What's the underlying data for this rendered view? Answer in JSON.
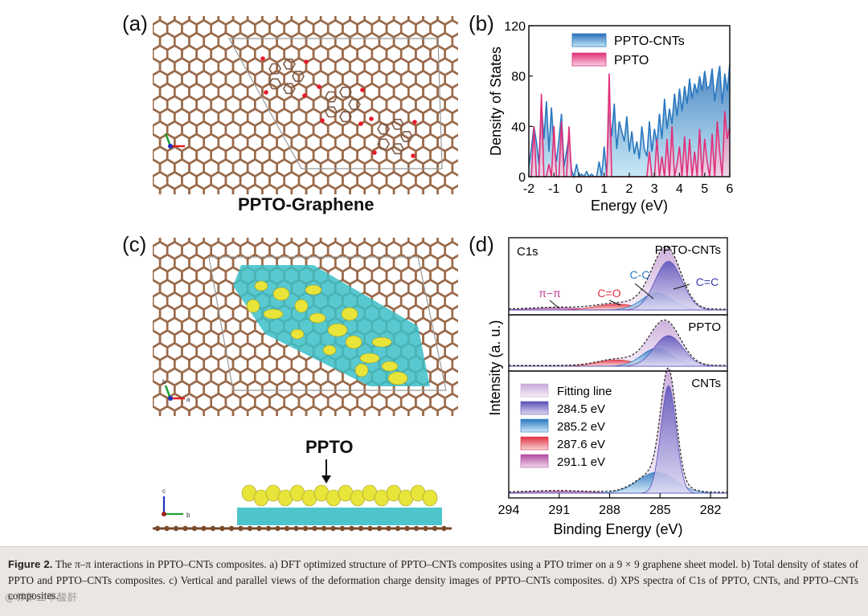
{
  "panels": {
    "a": {
      "label": "(a)",
      "title": "PPTO-Graphene"
    },
    "b": {
      "label": "(b)"
    },
    "c": {
      "label": "(c)",
      "side_title": "PPTO"
    },
    "d": {
      "label": "(d)"
    }
  },
  "colors": {
    "graphene": "#9a6a4a",
    "oxygen": "#e8192c",
    "charge_cyan": "#3bbfc8",
    "charge_yellow": "#e8e43a",
    "ppto_cnts": "#2a78c0",
    "ppto": "#e0307a"
  },
  "axis_glyphs": {
    "a": "a",
    "b": "b",
    "c": "c"
  },
  "chart_data": [
    {
      "id": "b",
      "type": "area",
      "title": "",
      "xlabel": "Energy (eV)",
      "ylabel": "Density of States",
      "xlim": [
        -2,
        6
      ],
      "ylim": [
        0,
        120
      ],
      "x_ticks": [
        "-2",
        "-1",
        "0",
        "1",
        "2",
        "3",
        "4",
        "5",
        "6"
      ],
      "y_ticks": [
        "0",
        "40",
        "80",
        "120"
      ],
      "legend": [
        "PPTO-CNTs",
        "PPTO"
      ],
      "series": [
        {
          "name": "PPTO-CNTs",
          "x": [
            -2,
            -1.9,
            -1.8,
            -1.7,
            -1.6,
            -1.5,
            -1.4,
            -1.3,
            -1.2,
            -1.1,
            -1.0,
            -0.9,
            -0.8,
            -0.7,
            -0.6,
            -0.5,
            -0.4,
            -0.3,
            -0.2,
            -0.1,
            0.0,
            0.1,
            0.2,
            0.3,
            0.4,
            0.5,
            0.6,
            0.7,
            0.8,
            0.9,
            1.0,
            1.1,
            1.2,
            1.3,
            1.4,
            1.5,
            1.6,
            1.7,
            1.8,
            1.9,
            2.0,
            2.1,
            2.2,
            2.3,
            2.4,
            2.5,
            2.6,
            2.7,
            2.8,
            2.9,
            3.0,
            3.1,
            3.2,
            3.3,
            3.4,
            3.5,
            3.6,
            3.7,
            3.8,
            3.9,
            4.0,
            4.1,
            4.2,
            4.3,
            4.4,
            4.5,
            4.6,
            4.7,
            4.8,
            4.9,
            5.0,
            5.1,
            5.2,
            5.3,
            5.4,
            5.5,
            5.6,
            5.7,
            5.8,
            5.9,
            6.0
          ],
          "values": [
            8,
            22,
            40,
            28,
            10,
            58,
            30,
            60,
            20,
            55,
            25,
            12,
            30,
            50,
            8,
            20,
            32,
            5,
            0,
            10,
            0,
            2,
            0,
            4,
            0,
            2,
            0,
            0,
            12,
            0,
            24,
            0,
            50,
            32,
            58,
            22,
            44,
            36,
            28,
            48,
            20,
            36,
            18,
            28,
            14,
            40,
            22,
            16,
            44,
            20,
            38,
            26,
            50,
            30,
            62,
            38,
            54,
            42,
            66,
            48,
            70,
            52,
            72,
            58,
            78,
            62,
            74,
            66,
            80,
            68,
            84,
            70,
            72,
            86,
            60,
            76,
            88,
            58,
            82,
            68,
            90
          ]
        },
        {
          "name": "PPTO",
          "x": [
            -2,
            -1.9,
            -1.8,
            -1.7,
            -1.6,
            -1.5,
            -1.4,
            -1.3,
            -1.2,
            -1.1,
            -1.0,
            -0.9,
            -0.8,
            -0.7,
            -0.6,
            -0.5,
            -0.4,
            -0.3,
            -0.2,
            -0.1,
            0.0,
            0.1,
            0.2,
            0.3,
            0.4,
            0.5,
            0.6,
            0.7,
            0.8,
            0.9,
            1.0,
            1.1,
            1.2,
            1.3,
            1.4,
            1.5,
            1.6,
            1.7,
            1.8,
            1.9,
            2.0,
            2.1,
            2.2,
            2.3,
            2.4,
            2.5,
            2.6,
            2.7,
            2.8,
            2.9,
            3.0,
            3.1,
            3.2,
            3.3,
            3.4,
            3.5,
            3.6,
            3.7,
            3.8,
            3.9,
            4.0,
            4.1,
            4.2,
            4.3,
            4.4,
            4.5,
            4.6,
            4.7,
            4.8,
            4.9,
            5.0,
            5.1,
            5.2,
            5.3,
            5.4,
            5.5,
            5.6,
            5.7,
            5.8,
            5.9,
            6.0
          ],
          "values": [
            0,
            0,
            40,
            0,
            0,
            66,
            0,
            0,
            10,
            0,
            40,
            0,
            0,
            44,
            0,
            0,
            40,
            0,
            0,
            0,
            0,
            0,
            0,
            0,
            0,
            0,
            0,
            0,
            0,
            0,
            0,
            0,
            82,
            0,
            0,
            0,
            0,
            0,
            0,
            0,
            0,
            0,
            0,
            0,
            0,
            0,
            0,
            0,
            20,
            0,
            0,
            30,
            0,
            16,
            0,
            30,
            0,
            40,
            0,
            10,
            24,
            0,
            32,
            0,
            30,
            0,
            20,
            0,
            38,
            0,
            30,
            12,
            0,
            34,
            0,
            44,
            20,
            0,
            52,
            30,
            40
          ]
        }
      ]
    },
    {
      "id": "d",
      "type": "area",
      "title": "C1s",
      "xlabel": "Binding Energy (eV)",
      "ylabel": "Intensity (a. u.)",
      "xlim": [
        294,
        281
      ],
      "x_ticks": [
        "294",
        "291",
        "288",
        "285",
        "282"
      ],
      "legend": [
        "Fitting line",
        "284.5 eV",
        "285.2 eV",
        "287.6 eV",
        "291.1 eV"
      ],
      "subplots": [
        {
          "name": "PPTO-CNTs",
          "annotations": [
            "π−π",
            "C=O",
            "C-C",
            "C=C"
          ],
          "peaks": [
            {
              "center": 284.5,
              "height": 0.74,
              "width": 0.8
            },
            {
              "center": 285.2,
              "height": 0.26,
              "width": 0.9
            },
            {
              "center": 287.6,
              "height": 0.09,
              "width": 1.2
            },
            {
              "center": 291.1,
              "height": 0.03,
              "width": 1.5
            }
          ]
        },
        {
          "name": "PPTO",
          "annotations": [],
          "peaks": [
            {
              "center": 284.5,
              "height": 0.68,
              "width": 0.85
            },
            {
              "center": 285.2,
              "height": 0.4,
              "width": 0.9
            },
            {
              "center": 287.6,
              "height": 0.14,
              "width": 1.1
            }
          ]
        },
        {
          "name": "CNTs",
          "annotations": [],
          "peaks": [
            {
              "center": 284.5,
              "height": 0.93,
              "width": 0.45
            },
            {
              "center": 285.2,
              "height": 0.18,
              "width": 1.1
            },
            {
              "center": 291.1,
              "height": 0.015,
              "width": 1.8
            }
          ]
        }
      ]
    }
  ],
  "caption": {
    "label": "Figure 2.",
    "text": " The π–π interactions in PPTO–CNTs composites. a) DFT optimized structure of PPTO–CNTs composites using a PTO trimer on a 9 × 9 graphene sheet model. b) Total density of states of PPTO and PPTO–CNTs composites. c) Vertical and parallel views of the deformation charge density images of PPTO–CNTs composites. d) XPS spectra of C1s of PPTO, CNTs, and PPTO–CNTs composites."
  },
  "watermark": "@邻苯二甲酸酐"
}
